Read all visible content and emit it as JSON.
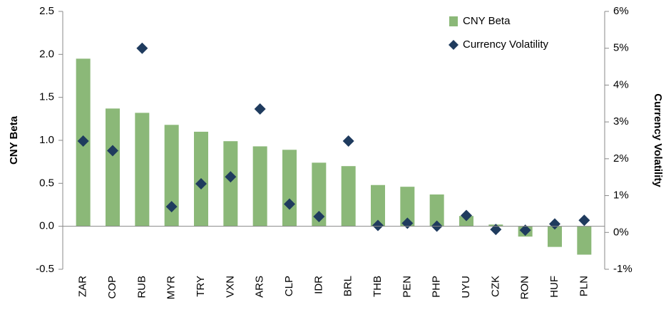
{
  "chart_data": {
    "type": "bar",
    "categories": [
      "ZAR",
      "COP",
      "RUB",
      "MYR",
      "TRY",
      "VXN",
      "ARS",
      "CLP",
      "IDR",
      "BRL",
      "THB",
      "PEN",
      "PHP",
      "UYU",
      "CZK",
      "RON",
      "HUF",
      "PLN"
    ],
    "series": [
      {
        "name": "CNY Beta",
        "type": "bar",
        "color": "#8bb878",
        "values": [
          1.95,
          1.37,
          1.32,
          1.18,
          1.1,
          0.99,
          0.93,
          0.89,
          0.74,
          0.7,
          0.48,
          0.46,
          0.37,
          0.12,
          0.02,
          -0.12,
          -0.24,
          -0.33
        ]
      },
      {
        "name": "Currency Volatility",
        "type": "scatter",
        "marker": "diamond",
        "axis": "y2",
        "color": "#1f3b5e",
        "values": [
          2.48,
          2.22,
          5.0,
          0.7,
          1.32,
          1.51,
          3.35,
          0.77,
          0.43,
          2.48,
          0.19,
          0.25,
          0.17,
          0.46,
          0.08,
          0.06,
          0.23,
          0.33
        ]
      }
    ],
    "y_label": "CNY Beta",
    "y2_label": "Currency Volatility",
    "ylim": [
      -0.5,
      2.5
    ],
    "yticks": [
      -0.5,
      {
        "value": 0,
        "label": "0.0"
      },
      0.5,
      {
        "value": 1,
        "label": "1.0"
      },
      1.5,
      {
        "value": 2,
        "label": "2.0"
      },
      2.5
    ],
    "y2lim": [
      -1,
      6
    ],
    "y2ticks": [
      {
        "value": -1,
        "label": "-1%"
      },
      {
        "value": 0,
        "label": "0%"
      },
      {
        "value": 1,
        "label": "1%"
      },
      {
        "value": 2,
        "label": "2%"
      },
      {
        "value": 3,
        "label": "3%"
      },
      {
        "value": 4,
        "label": "4%"
      },
      {
        "value": 5,
        "label": "5%"
      },
      {
        "value": 6,
        "label": "6%"
      }
    ],
    "legend": "upper right",
    "grid": false
  }
}
